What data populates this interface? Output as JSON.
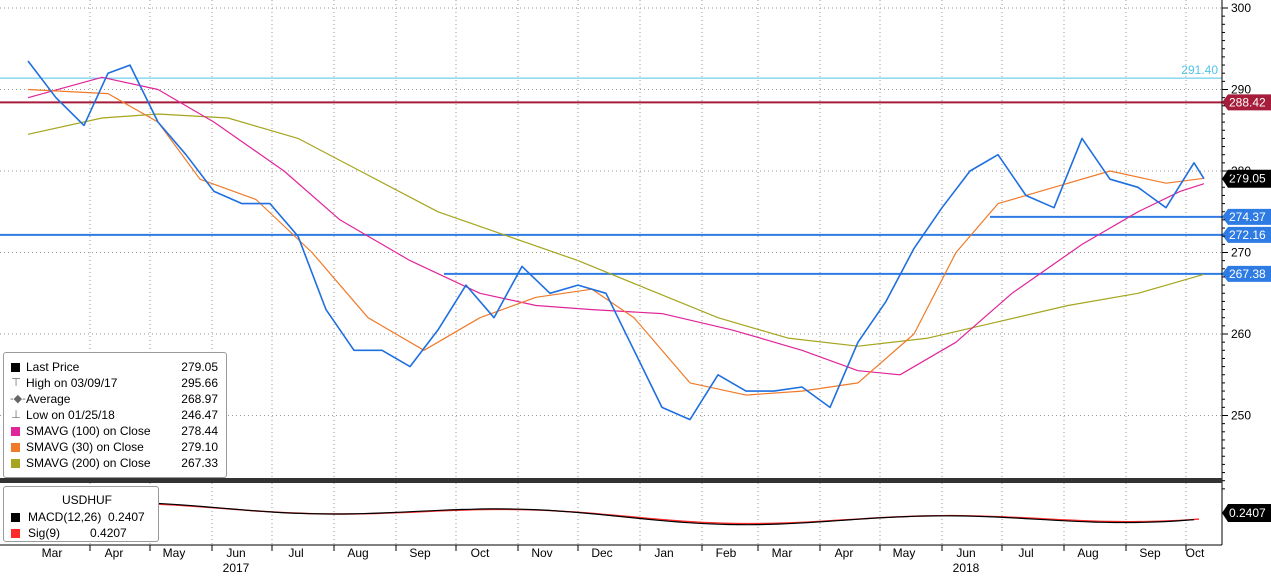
{
  "chart_data": {
    "type": "line",
    "title": "",
    "instrument": "USDHUF",
    "ylim": [
      240,
      300
    ],
    "y_ticks": [
      "300",
      "290",
      "280",
      "270",
      "260",
      "250"
    ],
    "months": [
      "Mar",
      "Apr",
      "May",
      "Jun",
      "Jul",
      "Aug",
      "Sep",
      "Oct",
      "Nov",
      "Dec",
      "Jan",
      "Feb",
      "Mar",
      "Apr",
      "May",
      "Jun",
      "Jul",
      "Aug",
      "Sep",
      "Oct"
    ],
    "years": [
      "2017",
      "2018"
    ],
    "colors": {
      "price": "#1f6fe0",
      "sma30": "#f07a2a",
      "sma100": "#e0259a",
      "sma200": "#a5a51e",
      "level_red": "#a51d3a",
      "level_blue": "#2e7be3",
      "level_cyan": "#4fc3e8",
      "macd": "#000000",
      "signal": "#ff2a2a"
    },
    "levels": [
      {
        "value": 291.4,
        "label": "291.40",
        "style": "cyan"
      },
      {
        "value": 288.42,
        "label": "288.42",
        "style": "red"
      },
      {
        "value": 274.37,
        "label": "274.37",
        "style": "blue"
      },
      {
        "value": 272.16,
        "label": "272.16",
        "style": "blue"
      },
      {
        "value": 267.38,
        "label": "267.38",
        "style": "blue"
      }
    ],
    "last_price_label": "279.05",
    "price_series": [
      [
        "2017-03-01",
        293.5
      ],
      [
        "2017-03-15",
        289
      ],
      [
        "2017-03-29",
        285.6
      ],
      [
        "2017-04-10",
        292
      ],
      [
        "2017-04-21",
        293
      ],
      [
        "2017-05-05",
        286
      ],
      [
        "2017-05-19",
        282
      ],
      [
        "2017-06-02",
        277.5
      ],
      [
        "2017-06-16",
        276
      ],
      [
        "2017-06-30",
        276
      ],
      [
        "2017-07-14",
        272
      ],
      [
        "2017-07-28",
        263
      ],
      [
        "2017-08-11",
        258
      ],
      [
        "2017-08-25",
        258
      ],
      [
        "2017-09-08",
        256
      ],
      [
        "2017-09-22",
        260.5
      ],
      [
        "2017-10-06",
        266
      ],
      [
        "2017-10-20",
        262
      ],
      [
        "2017-11-03",
        268.3
      ],
      [
        "2017-11-17",
        265
      ],
      [
        "2017-12-01",
        266
      ],
      [
        "2017-12-15",
        265
      ],
      [
        "2017-12-29",
        258
      ],
      [
        "2018-01-12",
        251
      ],
      [
        "2018-01-26",
        249.5
      ],
      [
        "2018-02-09",
        255
      ],
      [
        "2018-02-23",
        253
      ],
      [
        "2018-03-09",
        253
      ],
      [
        "2018-03-23",
        253.5
      ],
      [
        "2018-04-06",
        251
      ],
      [
        "2018-04-20",
        259
      ],
      [
        "2018-05-04",
        264
      ],
      [
        "2018-05-18",
        270.5
      ],
      [
        "2018-06-01",
        275.5
      ],
      [
        "2018-06-15",
        280
      ],
      [
        "2018-06-29",
        282
      ],
      [
        "2018-07-13",
        277
      ],
      [
        "2018-07-27",
        275.5
      ],
      [
        "2018-08-10",
        284
      ],
      [
        "2018-08-24",
        279
      ],
      [
        "2018-09-07",
        278
      ],
      [
        "2018-09-21",
        275.5
      ],
      [
        "2018-10-05",
        281
      ],
      [
        "2018-10-10",
        279.05
      ]
    ],
    "sma30": [
      [
        "2017-03-01",
        290
      ],
      [
        "2017-04-10",
        289.5
      ],
      [
        "2017-05-05",
        286
      ],
      [
        "2017-05-26",
        279
      ],
      [
        "2017-06-23",
        276.5
      ],
      [
        "2017-07-21",
        270
      ],
      [
        "2017-08-18",
        262
      ],
      [
        "2017-09-15",
        258
      ],
      [
        "2017-10-13",
        262
      ],
      [
        "2017-11-10",
        264.5
      ],
      [
        "2017-12-08",
        265.5
      ],
      [
        "2017-12-29",
        262
      ],
      [
        "2018-01-26",
        254
      ],
      [
        "2018-02-23",
        252.5
      ],
      [
        "2018-03-23",
        253
      ],
      [
        "2018-04-20",
        254
      ],
      [
        "2018-05-18",
        260
      ],
      [
        "2018-06-08",
        270
      ],
      [
        "2018-06-29",
        276
      ],
      [
        "2018-07-27",
        278
      ],
      [
        "2018-08-24",
        280
      ],
      [
        "2018-09-21",
        278.5
      ],
      [
        "2018-10-10",
        279.1
      ]
    ],
    "sma100": [
      [
        "2017-03-01",
        289
      ],
      [
        "2017-04-07",
        291.5
      ],
      [
        "2017-05-05",
        290
      ],
      [
        "2017-06-02",
        286
      ],
      [
        "2017-07-07",
        280
      ],
      [
        "2017-08-04",
        274
      ],
      [
        "2017-09-08",
        269
      ],
      [
        "2017-10-13",
        265
      ],
      [
        "2017-11-10",
        263.5
      ],
      [
        "2017-12-08",
        263
      ],
      [
        "2018-01-12",
        262.5
      ],
      [
        "2018-02-16",
        260.5
      ],
      [
        "2018-03-23",
        258
      ],
      [
        "2018-04-20",
        255.5
      ],
      [
        "2018-05-11",
        255
      ],
      [
        "2018-06-08",
        259
      ],
      [
        "2018-07-06",
        265
      ],
      [
        "2018-08-10",
        271
      ],
      [
        "2018-09-07",
        275
      ],
      [
        "2018-09-28",
        277.5
      ],
      [
        "2018-10-10",
        278.44
      ]
    ],
    "sma200": [
      [
        "2017-03-01",
        284.5
      ],
      [
        "2017-04-07",
        286.5
      ],
      [
        "2017-05-05",
        287
      ],
      [
        "2017-06-09",
        286.5
      ],
      [
        "2017-07-14",
        284
      ],
      [
        "2017-08-18",
        279.5
      ],
      [
        "2017-09-22",
        275
      ],
      [
        "2017-10-27",
        272
      ],
      [
        "2017-12-01",
        269
      ],
      [
        "2018-01-05",
        265.5
      ],
      [
        "2018-02-09",
        262
      ],
      [
        "2018-03-16",
        259.5
      ],
      [
        "2018-04-20",
        258.5
      ],
      [
        "2018-05-25",
        259.5
      ],
      [
        "2018-06-29",
        261.5
      ],
      [
        "2018-08-03",
        263.5
      ],
      [
        "2018-09-07",
        265
      ],
      [
        "2018-10-10",
        267.33
      ]
    ],
    "macd_last_label": "0.2407",
    "legend": {
      "last_price": {
        "label": "Last Price",
        "value": "279.05"
      },
      "high": {
        "label": "High on 03/09/17",
        "value": "295.66"
      },
      "average": {
        "label": "Average",
        "value": "268.97"
      },
      "low": {
        "label": "Low on 01/25/18",
        "value": "246.47"
      },
      "sma100": {
        "label": "SMAVG (100)  on Close",
        "value": "278.44"
      },
      "sma30": {
        "label": "SMAVG (30)  on Close",
        "value": "279.10"
      },
      "sma200": {
        "label": "SMAVG (200)  on Close",
        "value": "267.33"
      }
    },
    "macd_legend": {
      "title": "USDHUF",
      "macd": "MACD(12,26)  0.2407",
      "sig": "Sig(9)         0.4207"
    }
  }
}
